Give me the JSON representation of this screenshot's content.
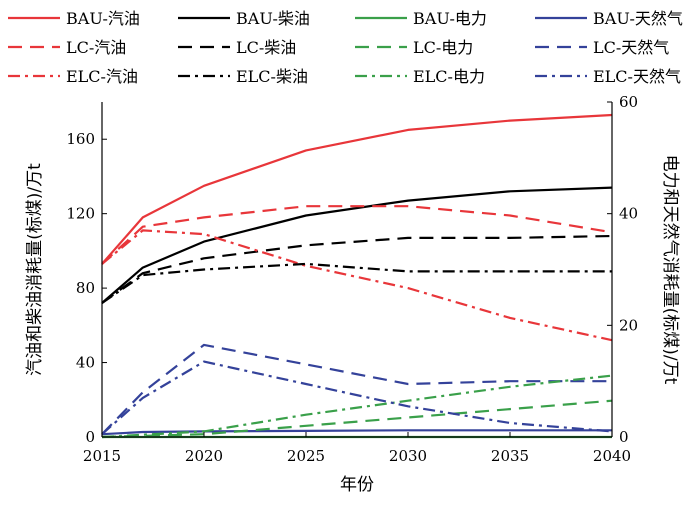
{
  "chart_data": {
    "type": "line",
    "xlabel": "年份",
    "ylabel": "汽油和柴油消耗量(标煤)/万t",
    "y2label": "电力和天然气消耗量(标煤)/万t",
    "xlim": [
      2015,
      2040
    ],
    "ylim": [
      0,
      180
    ],
    "y2lim": [
      0,
      60
    ],
    "xticks": [
      2015,
      2020,
      2025,
      2030,
      2035,
      2040
    ],
    "yticks": [
      0,
      40,
      80,
      120,
      160
    ],
    "y2ticks": [
      0,
      20,
      40,
      60
    ],
    "legend_position": "top",
    "series": [
      {
        "name": "BAU-汽油",
        "axis": "left",
        "color": "#e8363a",
        "dash": "solid",
        "x": [
          2015,
          2017,
          2020,
          2025,
          2030,
          2035,
          2040
        ],
        "values": [
          93,
          118,
          135,
          154,
          165,
          170,
          173
        ]
      },
      {
        "name": "BAU-柴油",
        "axis": "left",
        "color": "#000000",
        "dash": "solid",
        "x": [
          2015,
          2017,
          2020,
          2025,
          2030,
          2035,
          2040
        ],
        "values": [
          72,
          91,
          105,
          119,
          127,
          132,
          134
        ]
      },
      {
        "name": "BAU-电力",
        "axis": "right",
        "color": "#3aa04a",
        "dash": "solid",
        "x": [
          2015,
          2020,
          2025,
          2030,
          2035,
          2040
        ],
        "values": [
          0,
          0,
          0,
          0,
          0,
          0
        ]
      },
      {
        "name": "BAU-天然气",
        "axis": "right",
        "color": "#34429a",
        "dash": "solid",
        "x": [
          2015,
          2017,
          2020,
          2025,
          2030,
          2035,
          2040
        ],
        "values": [
          0.5,
          0.9,
          1.0,
          1.1,
          1.2,
          1.2,
          1.2
        ]
      },
      {
        "name": "LC-汽油",
        "axis": "left",
        "color": "#e8363a",
        "dash": "dash",
        "x": [
          2015,
          2017,
          2020,
          2025,
          2030,
          2035,
          2040
        ],
        "values": [
          93,
          113,
          118,
          124,
          124,
          119,
          110
        ]
      },
      {
        "name": "LC-柴油",
        "axis": "left",
        "color": "#000000",
        "dash": "dash",
        "x": [
          2015,
          2017,
          2020,
          2025,
          2030,
          2035,
          2040
        ],
        "values": [
          72,
          88,
          96,
          103,
          107,
          107,
          108
        ]
      },
      {
        "name": "LC-电力",
        "axis": "right",
        "color": "#3aa04a",
        "dash": "dash",
        "x": [
          2015,
          2020,
          2025,
          2030,
          2035,
          2040
        ],
        "values": [
          0,
          0.5,
          2,
          3.5,
          5,
          6.5
        ]
      },
      {
        "name": "LC-天然气",
        "axis": "right",
        "color": "#34429a",
        "dash": "dash",
        "x": [
          2015,
          2017,
          2020,
          2025,
          2030,
          2035,
          2040
        ],
        "values": [
          0.5,
          8,
          16.5,
          13,
          9.5,
          10,
          10
        ]
      },
      {
        "name": "ELC-汽油",
        "axis": "left",
        "color": "#e8363a",
        "dash": "dashdot",
        "x": [
          2015,
          2017,
          2020,
          2025,
          2030,
          2035,
          2040
        ],
        "values": [
          93,
          111,
          109,
          92,
          80,
          64,
          52
        ]
      },
      {
        "name": "ELC-柴油",
        "axis": "left",
        "color": "#000000",
        "dash": "dashdot",
        "x": [
          2015,
          2017,
          2020,
          2025,
          2030,
          2035,
          2040
        ],
        "values": [
          72,
          87,
          90,
          93,
          89,
          89,
          89
        ]
      },
      {
        "name": "ELC-电力",
        "axis": "right",
        "color": "#3aa04a",
        "dash": "dashdot",
        "x": [
          2015,
          2020,
          2025,
          2030,
          2035,
          2040
        ],
        "values": [
          0,
          1,
          4,
          6.5,
          9,
          11
        ]
      },
      {
        "name": "ELC-天然气",
        "axis": "right",
        "color": "#34429a",
        "dash": "dashdot",
        "x": [
          2015,
          2017,
          2020,
          2025,
          2030,
          2035,
          2040
        ],
        "values": [
          0.5,
          7,
          13.5,
          9.5,
          5.5,
          2.5,
          1
        ]
      }
    ]
  }
}
